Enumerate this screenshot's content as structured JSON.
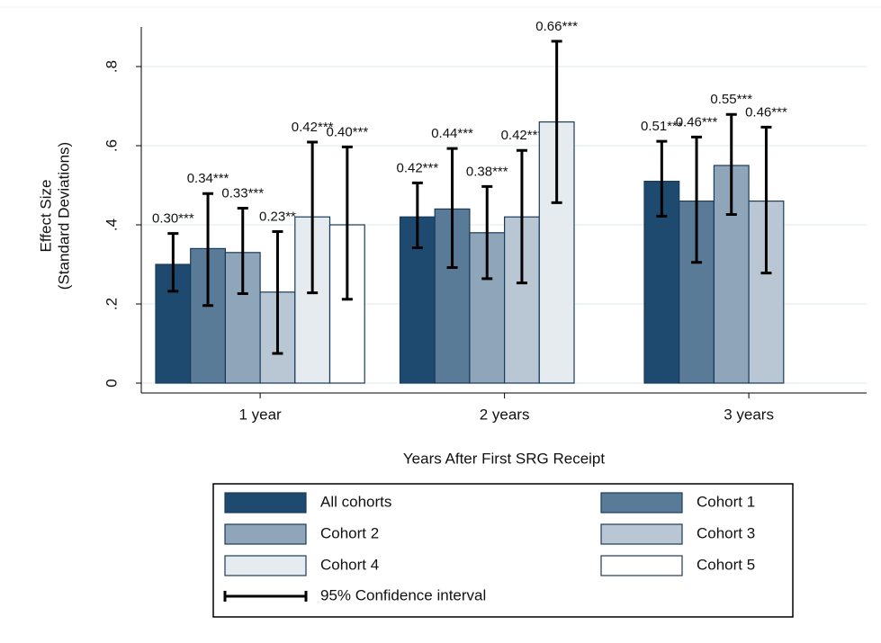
{
  "chart_data": {
    "type": "bar",
    "categories": [
      "1 year",
      "2 years",
      "3 years"
    ],
    "ylabel": [
      "Effect Size",
      "(Standard Deviations)"
    ],
    "xlabel": "Years After First SRG Receipt",
    "ylim": [
      -0.025,
      0.9
    ],
    "yticks": [
      0,
      {
        "value": 0.2,
        "label": ".2"
      },
      {
        "value": 0.4,
        "label": ".4"
      },
      {
        "value": 0.6,
        "label": ".6"
      },
      {
        "value": 0.8,
        "label": ".8"
      }
    ],
    "grid": true,
    "ci_label": "95% Confidence interval",
    "series": [
      {
        "name": "All cohorts",
        "color": "#1f4a70",
        "values": [
          0.3,
          0.42,
          0.51
        ],
        "value_labels": [
          "0.30***",
          "0.42***",
          "0.51***"
        ],
        "lower": [
          0.232,
          0.342,
          0.422
        ],
        "upper": [
          0.378,
          0.506,
          0.611
        ]
      },
      {
        "name": "Cohort 1",
        "color": "#5a7b98",
        "values": [
          0.34,
          0.44,
          0.46
        ],
        "value_labels": [
          "0.34***",
          "0.44***",
          "0.46***"
        ],
        "lower": [
          0.196,
          0.292,
          0.305
        ],
        "upper": [
          0.479,
          0.593,
          0.622
        ]
      },
      {
        "name": "Cohort 2",
        "color": "#8ea5ba",
        "values": [
          0.33,
          0.38,
          0.55
        ],
        "value_labels": [
          "0.33***",
          "0.38***",
          "0.55***"
        ],
        "lower": [
          0.226,
          0.264,
          0.426
        ],
        "upper": [
          0.442,
          0.497,
          0.679
        ]
      },
      {
        "name": "Cohort 3",
        "color": "#b8c7d3",
        "values": [
          0.23,
          0.42,
          0.46
        ],
        "value_labels": [
          "0.23**",
          "0.42***",
          "0.46***"
        ],
        "lower": [
          0.075,
          0.253,
          0.278
        ],
        "upper": [
          0.383,
          0.588,
          0.647
        ]
      },
      {
        "name": "Cohort 4",
        "color": "#e6ebf0",
        "values": [
          0.42,
          0.66,
          null
        ],
        "value_labels": [
          "0.42***",
          "0.66***",
          null
        ],
        "lower": [
          0.228,
          0.456,
          null
        ],
        "upper": [
          0.609,
          0.864,
          null
        ]
      },
      {
        "name": "Cohort 5",
        "color": "#ffffff",
        "values": [
          0.4,
          null,
          null
        ],
        "value_labels": [
          "0.40***",
          null,
          null
        ],
        "lower": [
          0.212,
          null,
          null
        ],
        "upper": [
          0.597,
          null,
          null
        ]
      }
    ]
  }
}
